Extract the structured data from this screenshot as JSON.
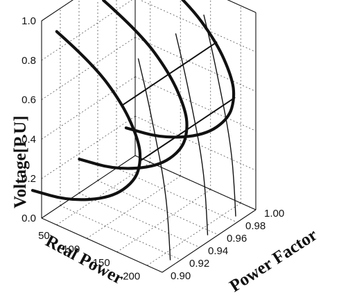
{
  "chart_data": {
    "type": "line",
    "title": "",
    "xlabel": "Real Power",
    "ylabel": "Voltage[P.U]",
    "zlabel": "Power Factor",
    "projection": "3d",
    "x_ticks": [
      "50",
      "100",
      "150",
      "200"
    ],
    "y_ticks": [
      "0.0",
      "0.2",
      "0.4",
      "0.6",
      "0.8",
      "1.0"
    ],
    "z_ticks": [
      "0.90",
      "0.92",
      "0.94",
      "0.96",
      "0.98",
      "1.00"
    ],
    "xlim": [
      25,
      225
    ],
    "ylim": [
      0,
      1
    ],
    "zlim": [
      0.9,
      1.0
    ],
    "grid": true,
    "series": [
      {
        "style": "bold",
        "points": [
          {
            "p": 50,
            "pf": 0.9,
            "v": 0.98
          },
          {
            "p": 110,
            "pf": 0.9,
            "v": 0.9
          },
          {
            "p": 160,
            "pf": 0.9,
            "v": 0.76
          },
          {
            "p": 185,
            "pf": 0.9,
            "v": 0.62
          },
          {
            "p": 190,
            "pf": 0.9,
            "v": 0.52
          },
          {
            "p": 180,
            "pf": 0.9,
            "v": 0.4
          },
          {
            "p": 140,
            "pf": 0.9,
            "v": 0.26
          },
          {
            "p": 70,
            "pf": 0.9,
            "v": 0.15
          },
          {
            "p": 10,
            "pf": 0.9,
            "v": 0.12
          }
        ]
      },
      {
        "style": "bold",
        "points": [
          {
            "p": 50,
            "pf": 0.95,
            "v": 0.98
          },
          {
            "p": 110,
            "pf": 0.95,
            "v": 0.9
          },
          {
            "p": 160,
            "pf": 0.95,
            "v": 0.76
          },
          {
            "p": 185,
            "pf": 0.95,
            "v": 0.62
          },
          {
            "p": 190,
            "pf": 0.95,
            "v": 0.52
          },
          {
            "p": 180,
            "pf": 0.95,
            "v": 0.4
          },
          {
            "p": 140,
            "pf": 0.95,
            "v": 0.26
          },
          {
            "p": 70,
            "pf": 0.95,
            "v": 0.15
          },
          {
            "p": 10,
            "pf": 0.95,
            "v": 0.12
          }
        ]
      },
      {
        "style": "bold",
        "points": [
          {
            "p": 50,
            "pf": 1.0,
            "v": 0.98
          },
          {
            "p": 110,
            "pf": 1.0,
            "v": 0.9
          },
          {
            "p": 160,
            "pf": 1.0,
            "v": 0.76
          },
          {
            "p": 185,
            "pf": 1.0,
            "v": 0.62
          },
          {
            "p": 190,
            "pf": 1.0,
            "v": 0.52
          },
          {
            "p": 180,
            "pf": 1.0,
            "v": 0.4
          },
          {
            "p": 140,
            "pf": 1.0,
            "v": 0.26
          },
          {
            "p": 70,
            "pf": 1.0,
            "v": 0.15
          },
          {
            "p": 10,
            "pf": 1.0,
            "v": 0.12
          }
        ]
      },
      {
        "style": "thin",
        "points": [
          {
            "p": 190,
            "pf": 0.9,
            "v": 0.52
          },
          {
            "p": 190,
            "pf": 0.95,
            "v": 0.52
          },
          {
            "p": 190,
            "pf": 1.0,
            "v": 0.52
          }
        ]
      },
      {
        "style": "thin",
        "points": [
          {
            "p": 160,
            "pf": 0.9,
            "v": 0.76
          },
          {
            "p": 160,
            "pf": 0.95,
            "v": 0.76
          },
          {
            "p": 160,
            "pf": 1.0,
            "v": 0.76
          }
        ]
      },
      {
        "style": "vthin",
        "points": [
          {
            "p": 215,
            "pf": 0.915,
            "v": 0
          },
          {
            "p": 212,
            "pf": 0.915,
            "v": 0.2
          },
          {
            "p": 204,
            "pf": 0.915,
            "v": 0.4
          },
          {
            "p": 190,
            "pf": 0.915,
            "v": 0.6
          },
          {
            "p": 175,
            "pf": 0.915,
            "v": 0.8
          },
          {
            "p": 162,
            "pf": 0.915,
            "v": 0.95
          }
        ]
      },
      {
        "style": "vthin",
        "points": [
          {
            "p": 215,
            "pf": 0.955,
            "v": 0
          },
          {
            "p": 212,
            "pf": 0.955,
            "v": 0.2
          },
          {
            "p": 204,
            "pf": 0.955,
            "v": 0.4
          },
          {
            "p": 190,
            "pf": 0.955,
            "v": 0.6
          },
          {
            "p": 175,
            "pf": 0.955,
            "v": 0.8
          },
          {
            "p": 162,
            "pf": 0.955,
            "v": 0.95
          }
        ]
      },
      {
        "style": "vthin",
        "points": [
          {
            "p": 215,
            "pf": 0.985,
            "v": 0
          },
          {
            "p": 212,
            "pf": 0.985,
            "v": 0.2
          },
          {
            "p": 204,
            "pf": 0.985,
            "v": 0.4
          },
          {
            "p": 190,
            "pf": 0.985,
            "v": 0.6
          },
          {
            "p": 175,
            "pf": 0.985,
            "v": 0.8
          },
          {
            "p": 162,
            "pf": 0.985,
            "v": 0.95
          }
        ]
      }
    ]
  }
}
